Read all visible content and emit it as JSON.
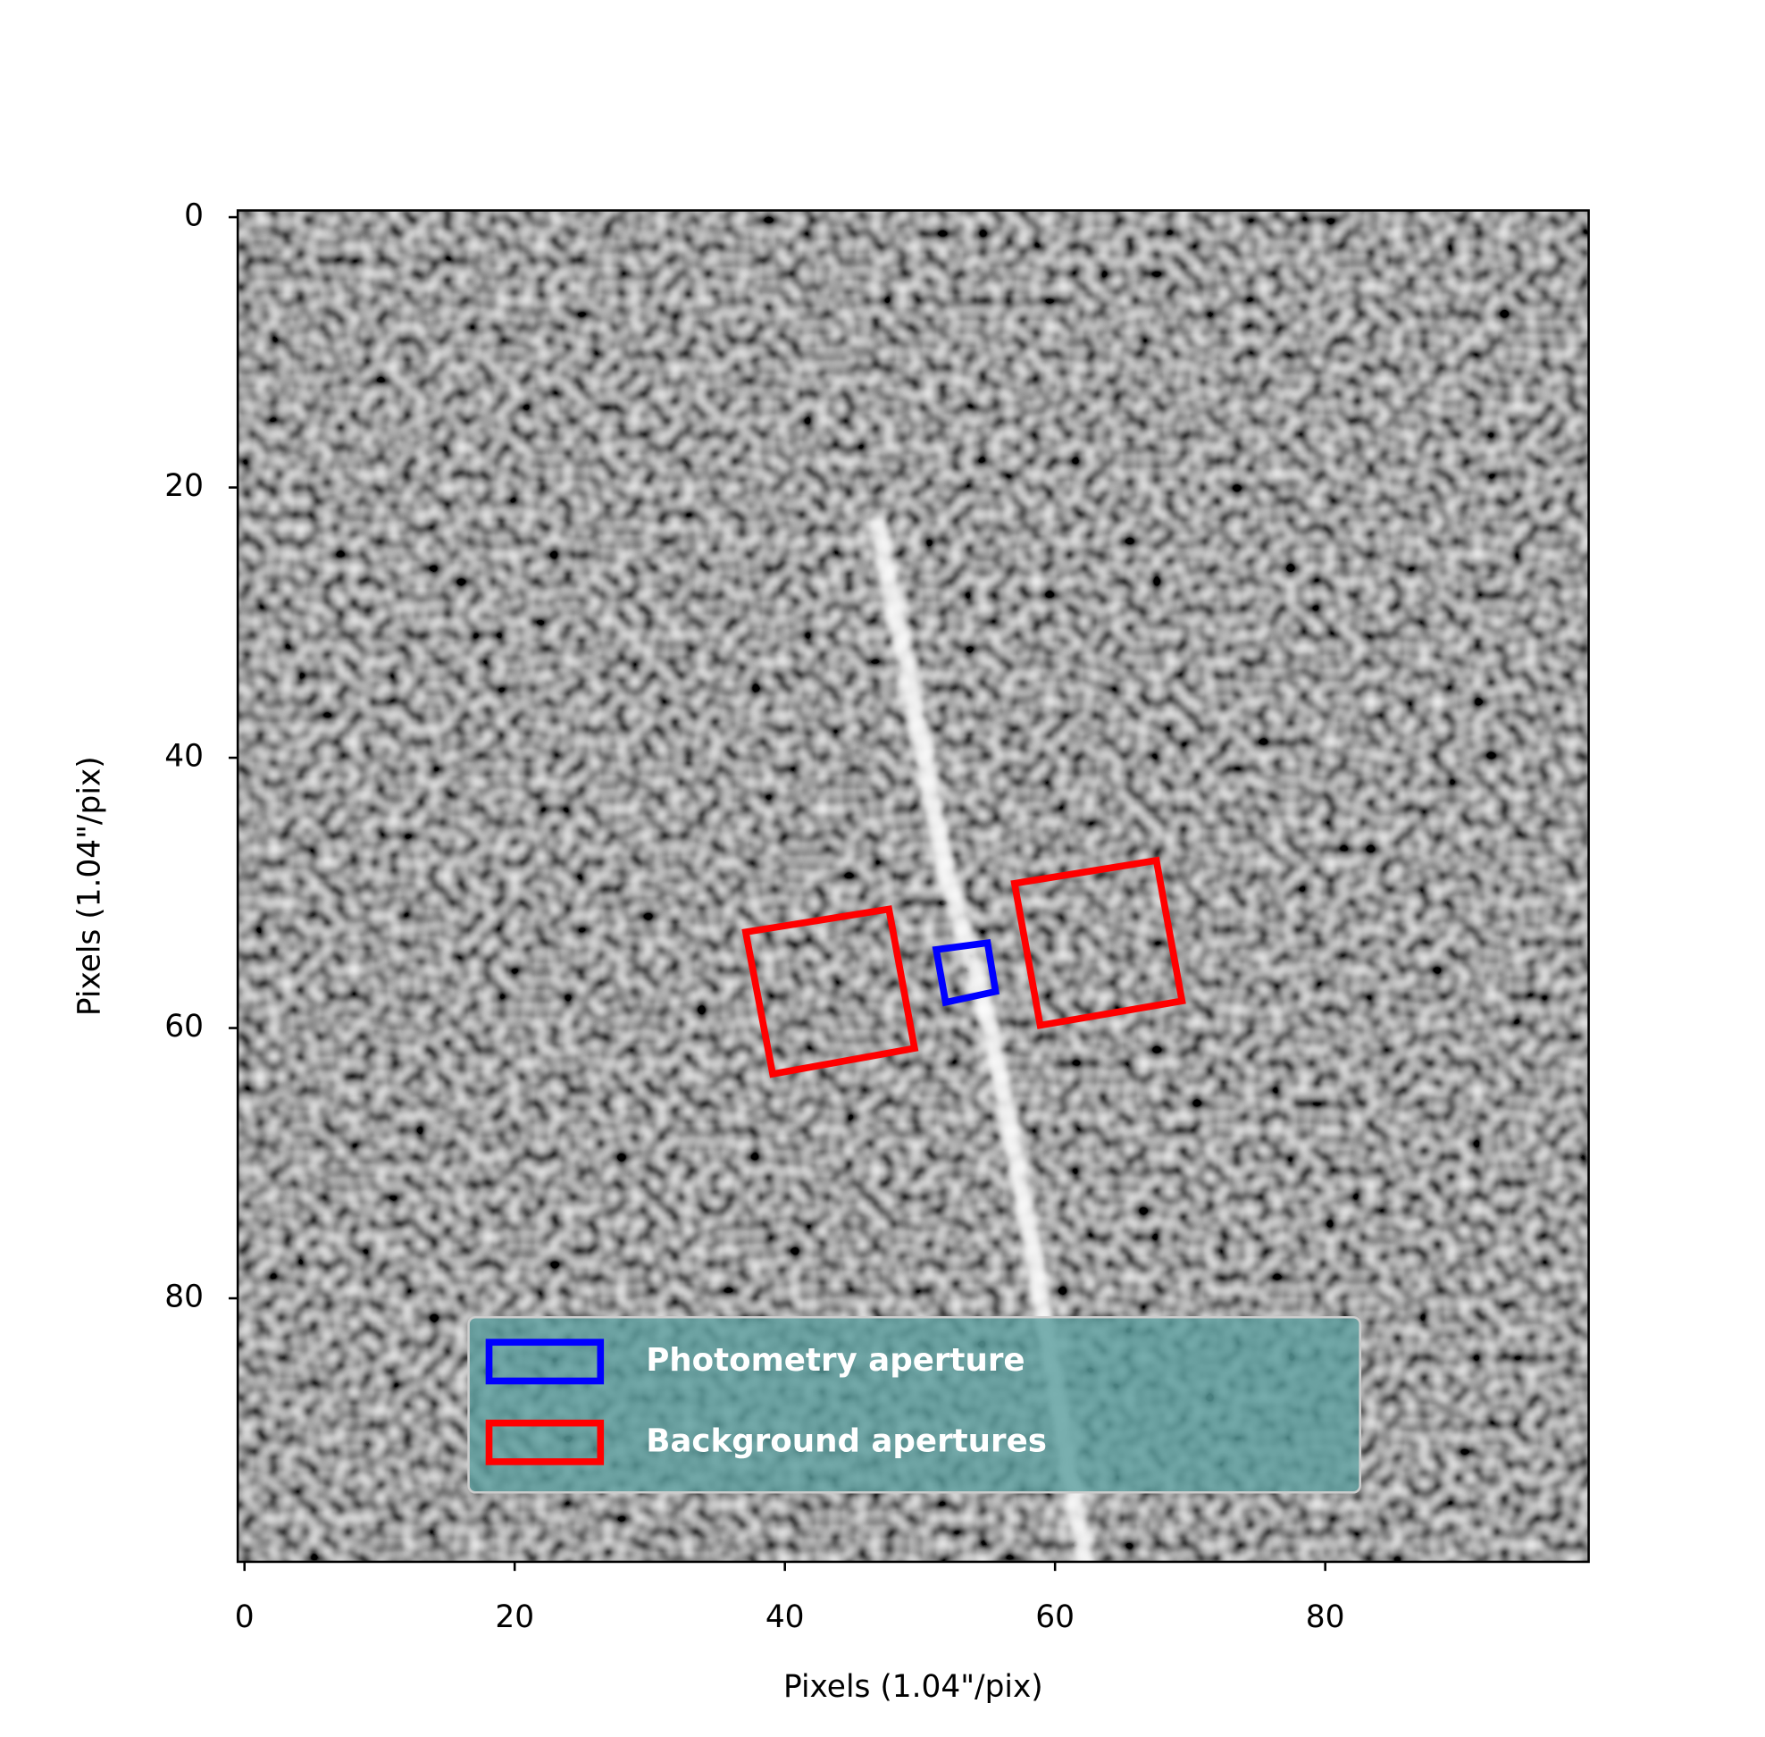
{
  "chart_data": {
    "type": "image",
    "xlabel": "Pixels (1.04\"/pix)",
    "ylabel": "Pixels (1.04\"/pix)",
    "xlim": [
      -0.5,
      99.5
    ],
    "ylim": [
      99.5,
      -0.5
    ],
    "xticks": [
      0,
      20,
      40,
      60,
      80
    ],
    "yticks": [
      0,
      20,
      40,
      60,
      80
    ],
    "legend": "lower center",
    "series": [
      {
        "name": "Photometry aperture",
        "color": "#0000ff",
        "x": [
          51.2,
          55.0,
          55.6,
          51.9
        ],
        "y": [
          54.2,
          53.7,
          57.3,
          58.1
        ]
      },
      {
        "name": "Background apertures",
        "color": "#ff0000",
        "x": [
          37.1,
          47.7,
          49.6,
          39.1
        ],
        "y": [
          52.9,
          51.2,
          61.5,
          63.4
        ]
      },
      {
        "name": null,
        "color": "#ff0000",
        "x": [
          57.0,
          67.5,
          69.4,
          58.9
        ],
        "y": [
          49.3,
          47.6,
          58.0,
          59.8
        ]
      }
    ]
  }
}
